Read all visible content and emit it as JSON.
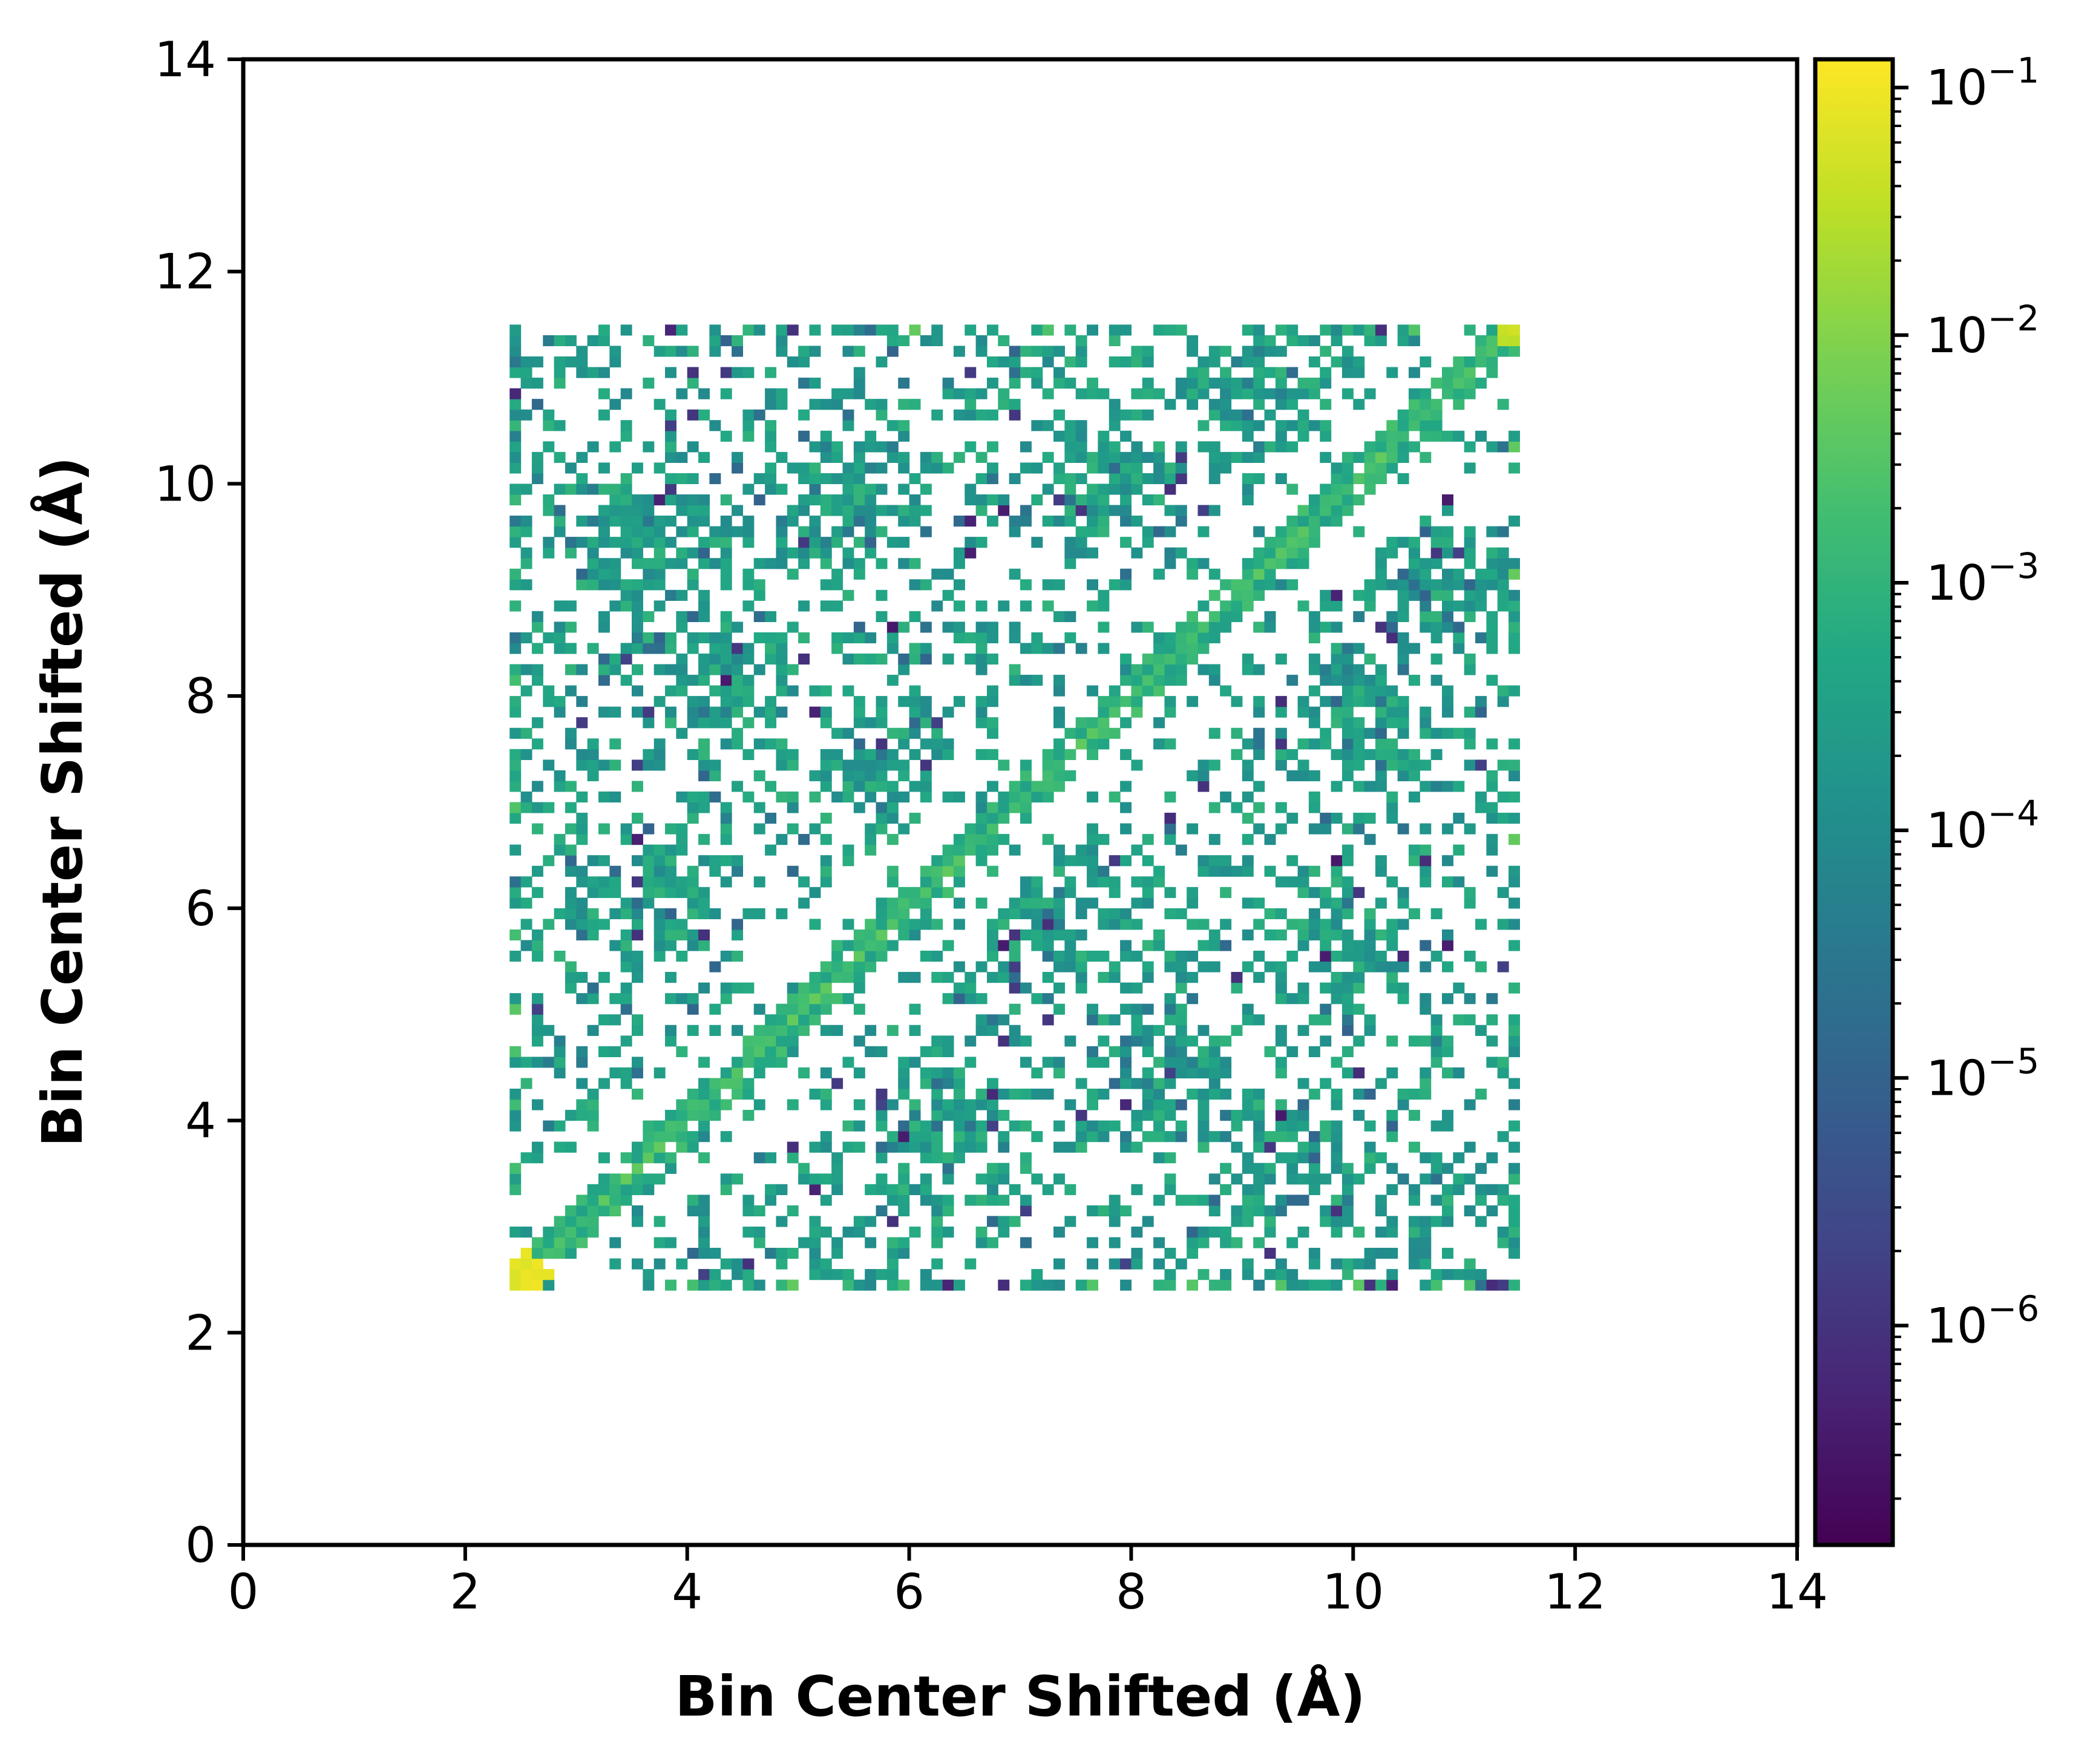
{
  "chart_data": {
    "type": "heatmap",
    "title": "",
    "xlabel": "Bin Center Shifted (Å)",
    "ylabel": "Bin Center Shifted (Å)",
    "xlim": [
      0,
      14
    ],
    "ylim": [
      0,
      14
    ],
    "x_ticks": [
      "0",
      "2",
      "4",
      "6",
      "8",
      "10",
      "12",
      "14"
    ],
    "y_ticks": [
      "0",
      "2",
      "4",
      "6",
      "8",
      "10",
      "12",
      "14"
    ],
    "data_extent": {
      "x": [
        2.4,
        11.5
      ],
      "y": [
        2.4,
        11.5
      ]
    },
    "bin_width": 0.1,
    "colormap": "viridis",
    "color_scale": "log",
    "colorbar": {
      "min": 1.3e-07,
      "max": 0.13,
      "tick_values": [
        1e-06,
        1e-05,
        0.0001,
        0.001,
        0.01,
        0.1
      ],
      "tick_labels": [
        {
          "base": "10",
          "exp": "−6"
        },
        {
          "base": "10",
          "exp": "−5"
        },
        {
          "base": "10",
          "exp": "−4"
        },
        {
          "base": "10",
          "exp": "−3"
        },
        {
          "base": "10",
          "exp": "−2"
        },
        {
          "base": "10",
          "exp": "−1"
        }
      ]
    },
    "features": {
      "diagonal_value_range": [
        0.001,
        0.005
      ],
      "corner_peak_lower_left": {
        "x": 2.55,
        "y": 2.55,
        "value": 0.1
      },
      "corner_peak_upper_right": {
        "x": 11.4,
        "y": 11.4,
        "value": 0.05
      },
      "typical_offdiagonal_value": 0.0003,
      "clusters": [
        {
          "x": 4.4,
          "y": 8.2,
          "value": 0.0003
        },
        {
          "x": 3.7,
          "y": 6.2,
          "value": 0.0003
        },
        {
          "x": 3.6,
          "y": 9.4,
          "value": 0.0002
        },
        {
          "x": 5.5,
          "y": 9.8,
          "value": 0.0003
        },
        {
          "x": 7.8,
          "y": 10.0,
          "value": 0.0003
        },
        {
          "x": 9.0,
          "y": 10.8,
          "value": 0.0003
        },
        {
          "x": 8.2,
          "y": 4.4,
          "value": 0.0003
        },
        {
          "x": 6.2,
          "y": 3.8,
          "value": 0.0003
        },
        {
          "x": 9.4,
          "y": 3.6,
          "value": 0.0002
        },
        {
          "x": 9.8,
          "y": 5.5,
          "value": 0.0003
        },
        {
          "x": 10.0,
          "y": 7.8,
          "value": 0.0003
        },
        {
          "x": 10.8,
          "y": 9.0,
          "value": 0.0003
        },
        {
          "x": 5.8,
          "y": 7.3,
          "value": 0.0003
        },
        {
          "x": 7.3,
          "y": 5.8,
          "value": 0.0003
        }
      ]
    }
  }
}
